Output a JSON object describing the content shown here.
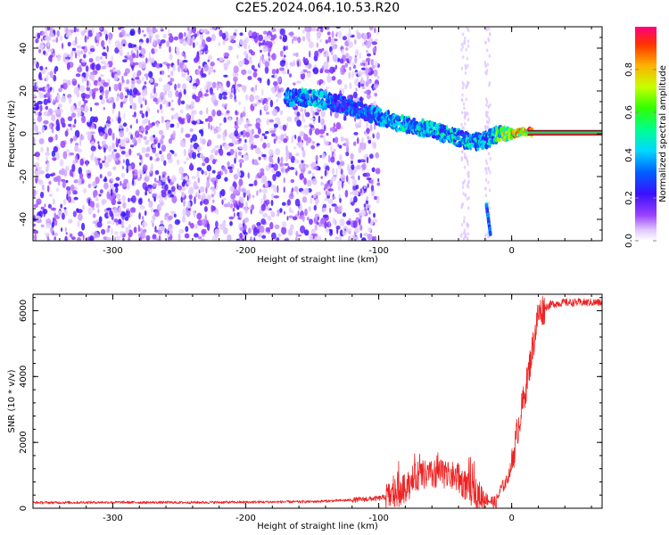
{
  "title": "C2E5.2024.064.10.53.R20",
  "colors": {
    "spectrogram_purple": "#7a1fff",
    "spectrogram_light": "#d9b8ff",
    "snr_line": "#ee2222",
    "ridge_red": "#ff2030"
  },
  "chart_data": [
    {
      "type": "heatmap",
      "title": "C2E5.2024.064.10.53.R20",
      "xlabel": "Height of straight line (km)",
      "ylabel": "Frequency (Hz)",
      "xlim": [
        -360,
        68
      ],
      "ylim": [
        -50,
        50
      ],
      "xticks": [
        -300,
        -200,
        -100,
        0
      ],
      "xtick_labels": [
        "-300",
        "-200",
        "-100",
        "0"
      ],
      "yticks": [
        -40,
        -20,
        0,
        20,
        40
      ],
      "ytick_labels": [
        "-40",
        "-20",
        "0",
        "20",
        "40"
      ],
      "colorbar": {
        "label": "Normalized spectral amplitude",
        "range": [
          0,
          1
        ],
        "ticks": [
          0.0,
          0.2,
          0.4,
          0.6,
          0.8
        ],
        "tick_labels": [
          "0.0",
          "0.2",
          "0.4",
          "0.6",
          "0.8"
        ]
      },
      "ridge": {
        "x": [
          -170,
          -150,
          -130,
          -110,
          -90,
          -70,
          -50,
          -30,
          -20,
          -10,
          0,
          10,
          68
        ],
        "y": [
          17,
          17,
          14,
          10,
          6,
          3,
          0,
          -4,
          -3,
          0,
          0,
          1,
          0
        ],
        "amplitude": [
          0.35,
          0.45,
          0.3,
          0.35,
          0.45,
          0.45,
          0.45,
          0.45,
          0.4,
          0.6,
          0.8,
          0.9,
          0.95
        ]
      },
      "secondary_streak": {
        "x": [
          -19,
          -16
        ],
        "y": [
          -33,
          -47
        ],
        "amplitude": 0.3
      }
    },
    {
      "type": "line",
      "xlabel": "Height of straight line (km)",
      "ylabel": "SNR (10 * v/v)",
      "xlim": [
        -360,
        68
      ],
      "ylim": [
        0,
        6500
      ],
      "xticks": [
        -300,
        -200,
        -100,
        0
      ],
      "xtick_labels": [
        "-300",
        "-200",
        "-100",
        "0"
      ],
      "yticks": [
        0,
        2000,
        4000,
        6000
      ],
      "ytick_labels": [
        "0",
        "2000",
        "4000",
        "6000"
      ],
      "series": [
        {
          "x": [
            -360,
            -300,
            -250,
            -200,
            -150,
            -120,
            -100,
            -90,
            -80,
            -70,
            -60,
            -50,
            -40,
            -30,
            -20,
            -12,
            -8,
            -4,
            0,
            5,
            10,
            15,
            20,
            25,
            30,
            40,
            50,
            68
          ],
          "y": [
            170,
            180,
            175,
            185,
            200,
            250,
            300,
            380,
            600,
            1000,
            1000,
            1050,
            900,
            500,
            300,
            150,
            600,
            800,
            1300,
            2500,
            3500,
            4700,
            5900,
            6100,
            6200,
            6250,
            6250,
            6250
          ]
        }
      ]
    }
  ]
}
